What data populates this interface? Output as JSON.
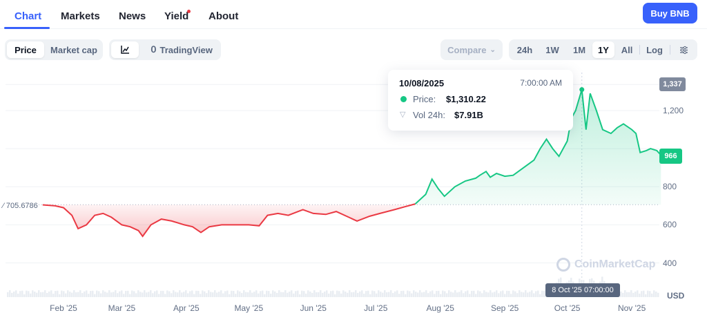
{
  "tabs": [
    {
      "label": "Chart",
      "active": true
    },
    {
      "label": "Markets"
    },
    {
      "label": "News"
    },
    {
      "label": "Yield",
      "notification_dot": true
    },
    {
      "label": "About"
    }
  ],
  "buy_button": "Buy BNB",
  "toolbar": {
    "metric": [
      "Price",
      "Market cap"
    ],
    "chart_type_icon": "line-chart-icon",
    "tradingview": "TradingView",
    "compare": "Compare",
    "ranges": [
      "24h",
      "1W",
      "1M",
      "1Y",
      "All"
    ],
    "selected_range": "1Y",
    "log": "Log",
    "settings_icon": "sliders-icon"
  },
  "tooltip": {
    "date": "10/08/2025",
    "time": "7:00:00 AM",
    "price_label": "Price:",
    "price": "$1,310.22",
    "vol_label": "Vol 24h:",
    "vol": "$7.91B"
  },
  "baseline_label": "705.6786",
  "high_badge": "1,337",
  "current_badge": "966",
  "crosshair_label": "8 Oct '25 07:00:00",
  "watermark": "CoinMarketCap",
  "currency": "USD",
  "colors": {
    "up": "#16c784",
    "down": "#ea3943",
    "accent": "#3861fb"
  },
  "chart_data": {
    "type": "area",
    "yticks": [
      "1,200",
      "1,000",
      "800",
      "600",
      "400"
    ],
    "ylim": [
      200,
      1400
    ],
    "xticks": [
      "Feb '25",
      "Mar '25",
      "Apr '25",
      "May '25",
      "Jun '25",
      "Jul '25",
      "Aug '25",
      "Sep '25",
      "Oct '25",
      "Nov '25"
    ],
    "baseline": 705.6786,
    "points": [
      [
        "2025-01-22",
        705
      ],
      [
        "2025-01-28",
        700
      ],
      [
        "2025-02-01",
        690
      ],
      [
        "2025-02-05",
        650
      ],
      [
        "2025-02-08",
        580
      ],
      [
        "2025-02-12",
        600
      ],
      [
        "2025-02-16",
        650
      ],
      [
        "2025-02-20",
        660
      ],
      [
        "2025-02-24",
        640
      ],
      [
        "2025-03-01",
        600
      ],
      [
        "2025-03-05",
        590
      ],
      [
        "2025-03-09",
        570
      ],
      [
        "2025-03-11",
        540
      ],
      [
        "2025-03-15",
        600
      ],
      [
        "2025-03-20",
        630
      ],
      [
        "2025-03-25",
        620
      ],
      [
        "2025-03-31",
        600
      ],
      [
        "2025-04-04",
        590
      ],
      [
        "2025-04-08",
        560
      ],
      [
        "2025-04-12",
        590
      ],
      [
        "2025-04-18",
        600
      ],
      [
        "2025-04-25",
        600
      ],
      [
        "2025-05-01",
        600
      ],
      [
        "2025-05-06",
        595
      ],
      [
        "2025-05-10",
        650
      ],
      [
        "2025-05-15",
        660
      ],
      [
        "2025-05-20",
        650
      ],
      [
        "2025-05-27",
        680
      ],
      [
        "2025-06-01",
        660
      ],
      [
        "2025-06-07",
        655
      ],
      [
        "2025-06-12",
        670
      ],
      [
        "2025-06-18",
        640
      ],
      [
        "2025-06-22",
        620
      ],
      [
        "2025-06-28",
        645
      ],
      [
        "2025-07-03",
        660
      ],
      [
        "2025-07-10",
        680
      ],
      [
        "2025-07-15",
        695
      ],
      [
        "2025-07-20",
        710
      ],
      [
        "2025-07-25",
        760
      ],
      [
        "2025-07-28",
        840
      ],
      [
        "2025-07-31",
        790
      ],
      [
        "2025-08-03",
        750
      ],
      [
        "2025-08-08",
        800
      ],
      [
        "2025-08-13",
        830
      ],
      [
        "2025-08-18",
        845
      ],
      [
        "2025-08-20",
        860
      ],
      [
        "2025-08-23",
        880
      ],
      [
        "2025-08-25",
        850
      ],
      [
        "2025-08-28",
        870
      ],
      [
        "2025-09-01",
        855
      ],
      [
        "2025-09-05",
        860
      ],
      [
        "2025-09-10",
        900
      ],
      [
        "2025-09-15",
        940
      ],
      [
        "2025-09-18",
        1000
      ],
      [
        "2025-09-21",
        1050
      ],
      [
        "2025-09-24",
        1000
      ],
      [
        "2025-09-27",
        960
      ],
      [
        "2025-10-01",
        1040
      ],
      [
        "2025-10-03",
        1160
      ],
      [
        "2025-10-05",
        1200
      ],
      [
        "2025-10-08",
        1310
      ],
      [
        "2025-10-10",
        1100
      ],
      [
        "2025-10-12",
        1290
      ],
      [
        "2025-10-15",
        1200
      ],
      [
        "2025-10-18",
        1100
      ],
      [
        "2025-10-22",
        1080
      ],
      [
        "2025-10-25",
        1110
      ],
      [
        "2025-10-28",
        1130
      ],
      [
        "2025-11-01",
        1100
      ],
      [
        "2025-11-03",
        1080
      ],
      [
        "2025-11-05",
        980
      ],
      [
        "2025-11-08",
        990
      ],
      [
        "2025-11-10",
        1000
      ],
      [
        "2025-11-13",
        990
      ],
      [
        "2025-11-15",
        966
      ]
    ]
  }
}
